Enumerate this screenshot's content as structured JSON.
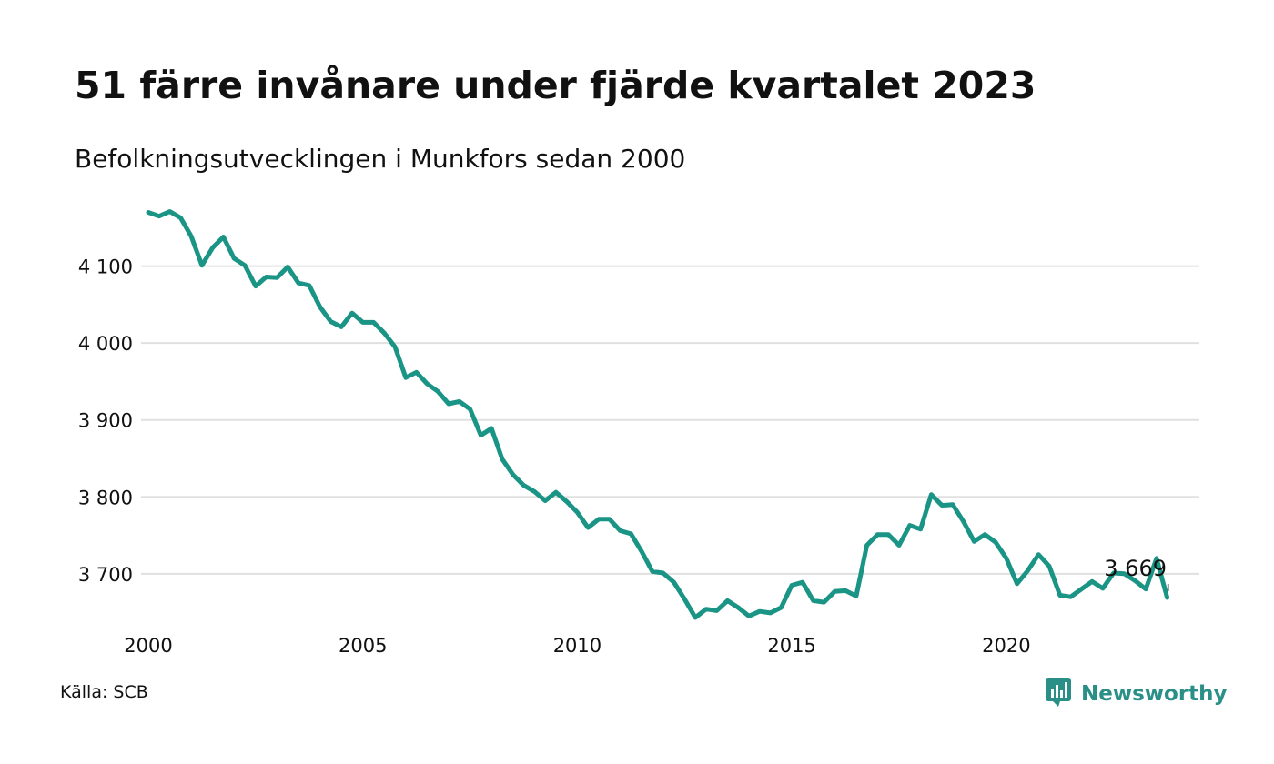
{
  "title": "51 färre invånare under fjärde kvartalet 2023",
  "subtitle": "Befolkningsutvecklingen i Munkfors sedan 2000",
  "source": "Källa: SCB",
  "brand": "Newsworthy",
  "colors": {
    "line": "#1a9485",
    "grid": "#e0e0e0",
    "brand": "#2a8f86"
  },
  "icons": {
    "brand_logo": "newsworthy-logo-icon"
  },
  "chart_data": {
    "type": "line",
    "title": "51 färre invånare under fjärde kvartalet 2023",
    "subtitle": "Befolkningsutvecklingen i Munkfors sedan 2000",
    "xlabel": "",
    "ylabel": "",
    "xlim": [
      2000,
      2024.5
    ],
    "ylim": [
      3630,
      4180
    ],
    "yticks": [
      3700,
      3800,
      3900,
      4000,
      4100
    ],
    "ytick_labels": [
      "3 700",
      "3 800",
      "3 900",
      "4 000",
      "4 100"
    ],
    "xticks": [
      2000,
      2005,
      2010,
      2015,
      2020
    ],
    "xtick_labels": [
      "2000",
      "2005",
      "2010",
      "2015",
      "2020"
    ],
    "grid": "horizontal",
    "legend": "none",
    "end_label": "3 669",
    "series": [
      {
        "x": [
          "2000Q1",
          "2000Q2",
          "2000Q3",
          "2000Q4",
          "2001Q1",
          "2001Q2",
          "2001Q3",
          "2001Q4",
          "2002Q1",
          "2002Q2",
          "2002Q3",
          "2002Q4",
          "2003Q1",
          "2003Q2",
          "2003Q3",
          "2003Q4",
          "2004Q1",
          "2004Q2",
          "2004Q3",
          "2004Q4",
          "2005Q1",
          "2005Q2",
          "2005Q3",
          "2005Q4",
          "2006Q1",
          "2006Q2",
          "2006Q3",
          "2006Q4",
          "2007Q1",
          "2007Q2",
          "2007Q3",
          "2007Q4",
          "2008Q1",
          "2008Q2",
          "2008Q3",
          "2008Q4",
          "2009Q1",
          "2009Q2",
          "2009Q3",
          "2009Q4",
          "2010Q1",
          "2010Q2",
          "2010Q3",
          "2010Q4",
          "2011Q1",
          "2011Q2",
          "2011Q3",
          "2011Q4",
          "2012Q1",
          "2012Q2",
          "2012Q3",
          "2012Q4",
          "2013Q1",
          "2013Q2",
          "2013Q3",
          "2013Q4",
          "2014Q1",
          "2014Q2",
          "2014Q3",
          "2014Q4",
          "2015Q1",
          "2015Q2",
          "2015Q3",
          "2015Q4",
          "2016Q1",
          "2016Q2",
          "2016Q3",
          "2016Q4",
          "2017Q1",
          "2017Q2",
          "2017Q3",
          "2017Q4",
          "2018Q1",
          "2018Q2",
          "2018Q3",
          "2018Q4",
          "2019Q1",
          "2019Q2",
          "2019Q3",
          "2019Q4",
          "2020Q1",
          "2020Q2",
          "2020Q3",
          "2020Q4",
          "2021Q1",
          "2021Q2",
          "2021Q3",
          "2021Q4",
          "2022Q1",
          "2022Q2",
          "2022Q3",
          "2022Q4",
          "2023Q1",
          "2023Q2",
          "2023Q3",
          "2023Q4"
        ],
        "values": [
          4170,
          4165,
          4171,
          4163,
          4139,
          4101,
          4124,
          4138,
          4110,
          4101,
          4074,
          4086,
          4085,
          4099,
          4078,
          4075,
          4047,
          4028,
          4021,
          4039,
          4027,
          4027,
          4013,
          3995,
          3955,
          3962,
          3947,
          3937,
          3921,
          3924,
          3914,
          3880,
          3889,
          3849,
          3829,
          3815,
          3807,
          3795,
          3806,
          3794,
          3780,
          3760,
          3771,
          3771,
          3756,
          3752,
          3729,
          3703,
          3701,
          3689,
          3667,
          3643,
          3654,
          3652,
          3665,
          3656,
          3645,
          3651,
          3649,
          3656,
          3685,
          3689,
          3665,
          3663,
          3677,
          3678,
          3671,
          3737,
          3751,
          3751,
          3737,
          3763,
          3758,
          3803,
          3789,
          3790,
          3768,
          3742,
          3751,
          3741,
          3720,
          3687,
          3704,
          3725,
          3710,
          3672,
          3670,
          3680,
          3690,
          3681,
          3701,
          3700,
          3691,
          3680,
          3720,
          3669
        ]
      }
    ]
  }
}
